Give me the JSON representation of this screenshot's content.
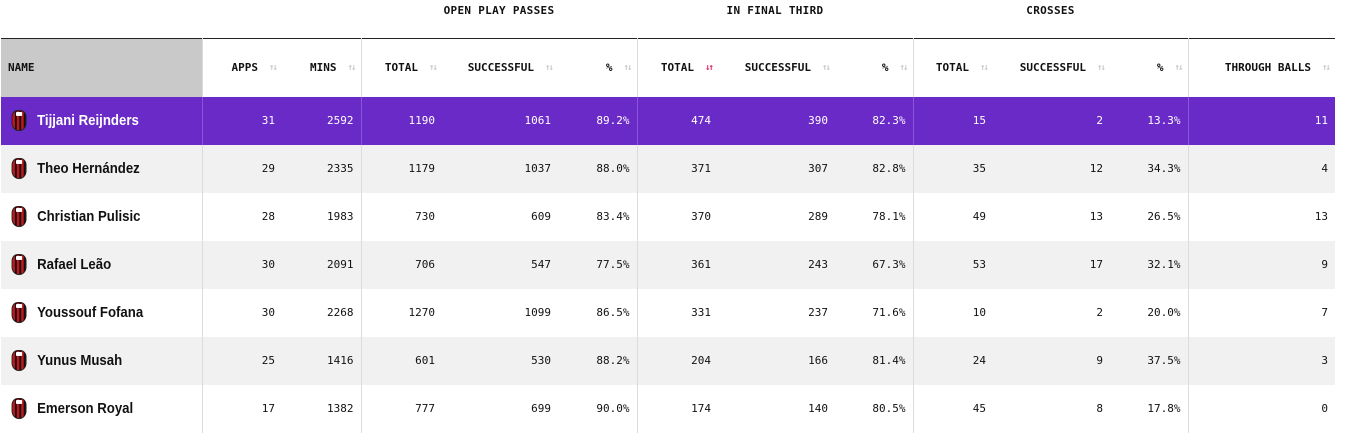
{
  "group_headers": {
    "open_play_passes": "OPEN PLAY PASSES",
    "in_final_third": "IN FINAL THIRD",
    "crosses": "CROSSES"
  },
  "columns": {
    "name": "NAME",
    "apps": "APPS",
    "mins": "MINS",
    "op_total": "TOTAL",
    "op_successful": "SUCCESSFUL",
    "op_pct": "%",
    "ft_total": "TOTAL",
    "ft_successful": "SUCCESSFUL",
    "ft_pct": "%",
    "cr_total": "TOTAL",
    "cr_successful": "SUCCESSFUL",
    "cr_pct": "%",
    "through_balls": "THROUGH BALLS"
  },
  "sort": {
    "column": "ft_total",
    "direction": "descending",
    "inactive_icon": "↑↓",
    "active_icon": "↓↑",
    "active_color": "#e0245e"
  },
  "highlight_color": "#6a2ac7",
  "club_badge_icon": "ac-milan-crest-icon",
  "rows": [
    {
      "name": "Tijjani Reijnders",
      "apps": "31",
      "mins": "2592",
      "op_total": "1190",
      "op_successful": "1061",
      "op_pct": "89.2%",
      "ft_total": "474",
      "ft_successful": "390",
      "ft_pct": "82.3%",
      "cr_total": "15",
      "cr_successful": "2",
      "cr_pct": "13.3%",
      "through_balls": "11"
    },
    {
      "name": "Theo Hernández",
      "apps": "29",
      "mins": "2335",
      "op_total": "1179",
      "op_successful": "1037",
      "op_pct": "88.0%",
      "ft_total": "371",
      "ft_successful": "307",
      "ft_pct": "82.8%",
      "cr_total": "35",
      "cr_successful": "12",
      "cr_pct": "34.3%",
      "through_balls": "4"
    },
    {
      "name": "Christian Pulisic",
      "apps": "28",
      "mins": "1983",
      "op_total": "730",
      "op_successful": "609",
      "op_pct": "83.4%",
      "ft_total": "370",
      "ft_successful": "289",
      "ft_pct": "78.1%",
      "cr_total": "49",
      "cr_successful": "13",
      "cr_pct": "26.5%",
      "through_balls": "13"
    },
    {
      "name": "Rafael Leão",
      "apps": "30",
      "mins": "2091",
      "op_total": "706",
      "op_successful": "547",
      "op_pct": "77.5%",
      "ft_total": "361",
      "ft_successful": "243",
      "ft_pct": "67.3%",
      "cr_total": "53",
      "cr_successful": "17",
      "cr_pct": "32.1%",
      "through_balls": "9"
    },
    {
      "name": "Youssouf Fofana",
      "apps": "30",
      "mins": "2268",
      "op_total": "1270",
      "op_successful": "1099",
      "op_pct": "86.5%",
      "ft_total": "331",
      "ft_successful": "237",
      "ft_pct": "71.6%",
      "cr_total": "10",
      "cr_successful": "2",
      "cr_pct": "20.0%",
      "through_balls": "7"
    },
    {
      "name": "Yunus Musah",
      "apps": "25",
      "mins": "1416",
      "op_total": "601",
      "op_successful": "530",
      "op_pct": "88.2%",
      "ft_total": "204",
      "ft_successful": "166",
      "ft_pct": "81.4%",
      "cr_total": "24",
      "cr_successful": "9",
      "cr_pct": "37.5%",
      "through_balls": "3"
    },
    {
      "name": "Emerson Royal",
      "apps": "17",
      "mins": "1382",
      "op_total": "777",
      "op_successful": "699",
      "op_pct": "90.0%",
      "ft_total": "174",
      "ft_successful": "140",
      "ft_pct": "80.5%",
      "cr_total": "45",
      "cr_successful": "8",
      "cr_pct": "17.8%",
      "through_balls": "0"
    }
  ]
}
